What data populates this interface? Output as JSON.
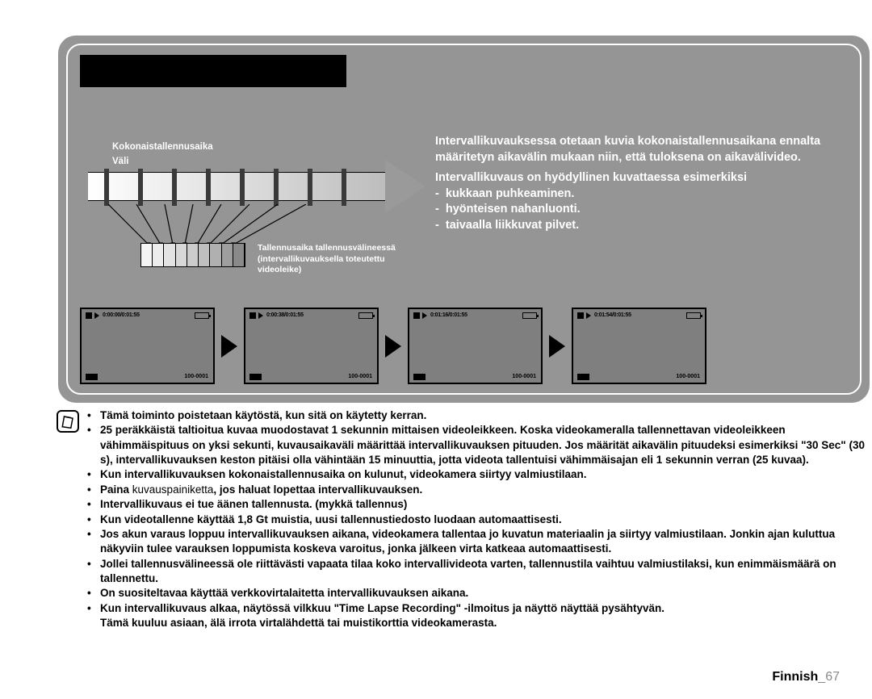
{
  "labels": {
    "total": "Kokonaistallennusaika",
    "interval": "Väli",
    "record_caption": "Tallennusaika tallennusvälineessä (intervallikuvauksella toteutettu videoleike)"
  },
  "desc": {
    "p1": "Intervallikuvauksessa otetaan kuvia kokonaistallennusaikana ennalta määritetyn aikavälin mukaan niin, että tuloksena on aikavälivideo.",
    "p2": "Intervallikuvaus on hyödyllinen kuvattaessa esimerkiksi",
    "b1": "kukkaan puhkeaminen.",
    "b2": "hyönteisen nahanluonti.",
    "b3": "taivaalla liikkuvat pilvet."
  },
  "thumbs": {
    "t1": "0:00:00/0:01:55",
    "t2": "0:00:38/0:01:55",
    "t3": "0:01:16/0:01:55",
    "t4": "0:01:54/0:01:55",
    "fn": "100-0001"
  },
  "bigarrow": {
    "ticks": 8,
    "shades": [
      "#f5f5f5",
      "#ededed",
      "#e3e3e3",
      "#d8d8d8",
      "#cccccc",
      "#bfbfbf",
      "#b0b0b0",
      "#9e9e9e",
      "#8a8a8a"
    ]
  },
  "notes": {
    "n1": "Tämä toiminto poistetaan käytöstä, kun sitä on käytetty kerran.",
    "n2a": "25 peräkkäistä taltioitua kuvaa muodostavat 1 sekunnin mittaisen videoleikkeen. Koska videokameralla tallennettavan videoleikkeen vähimmäispituus on yksi sekunti, kuvausaikaväli määrittää intervallikuvauksen pituuden. Jos määrität aikavälin pituudeksi esimerkiksi ",
    "n2b": "\"30 Sec\"",
    "n2c": " (30 s), intervallikuvauksen keston pitäisi olla vähintään 15 minuuttia, jotta videota tallentuisi vähimmäisajan eli 1 sekunnin verran (25 kuvaa).",
    "n3": "Kun intervallikuvauksen kokonaistallennusaika on kulunut, videokamera siirtyy valmiustilaan.",
    "n4a": "Paina ",
    "n4b": "kuvauspainiketta",
    "n4c": ", jos haluat lopettaa intervallikuvauksen.",
    "n5": "Intervallikuvaus ei tue äänen tallennusta. (mykkä tallennus)",
    "n6": "Kun videotallenne käyttää 1,8 Gt muistia, uusi tallennustiedosto luodaan automaattisesti.",
    "n7": "Jos akun varaus loppuu intervallikuvauksen aikana, videokamera tallentaa jo kuvatun materiaalin ja siirtyy valmiustilaan. Jonkin ajan kuluttua näkyviin tulee varauksen loppumista koskeva varoitus, jonka jälkeen virta katkeaa automaattisesti.",
    "n8": "Jollei tallennusvälineessä ole riittävästi vapaata tilaa koko intervallivideota varten, tallennustila vaihtuu valmiustilaksi, kun enimmäismäärä on tallennettu.",
    "n9": "On suositeltavaa käyttää verkkovirtalaitetta intervallikuvauksen aikana.",
    "n10a": "Kun intervallikuvaus alkaa, näytössä vilkkuu ",
    "n10b": "\"Time Lapse Recording\"",
    "n10c": " -ilmoitus ja näyttö näyttää pysähtyvän.",
    "n10d": "Tämä kuuluu asiaan, älä irrota virtalähdettä tai muistikorttia videokamerasta."
  },
  "footer": {
    "lang": "Finnish",
    "page": "_67"
  }
}
